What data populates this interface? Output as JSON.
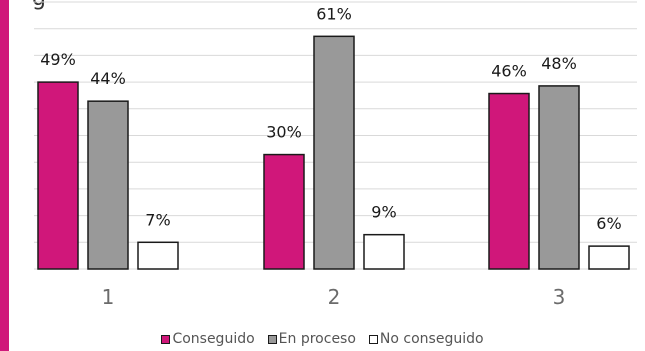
{
  "chart_data": {
    "type": "bar",
    "title_fragment": "g",
    "categories": [
      "1",
      "2",
      "3"
    ],
    "series": [
      {
        "name": "Conseguido",
        "color": "#d0177a",
        "values": [
          49,
          30,
          46
        ],
        "labels": [
          "49%",
          "30%",
          "46%"
        ]
      },
      {
        "name": "En proceso",
        "color": "#999999",
        "values": [
          44,
          61,
          48
        ],
        "labels": [
          "44%",
          "61%",
          "48%"
        ]
      },
      {
        "name": "No conseguido",
        "color": "#ffffff",
        "values": [
          7,
          9,
          6
        ],
        "labels": [
          "7%",
          "9%",
          "6%"
        ]
      }
    ],
    "ylim": [
      0,
      70
    ],
    "grid": true,
    "legend_position": "bottom"
  }
}
